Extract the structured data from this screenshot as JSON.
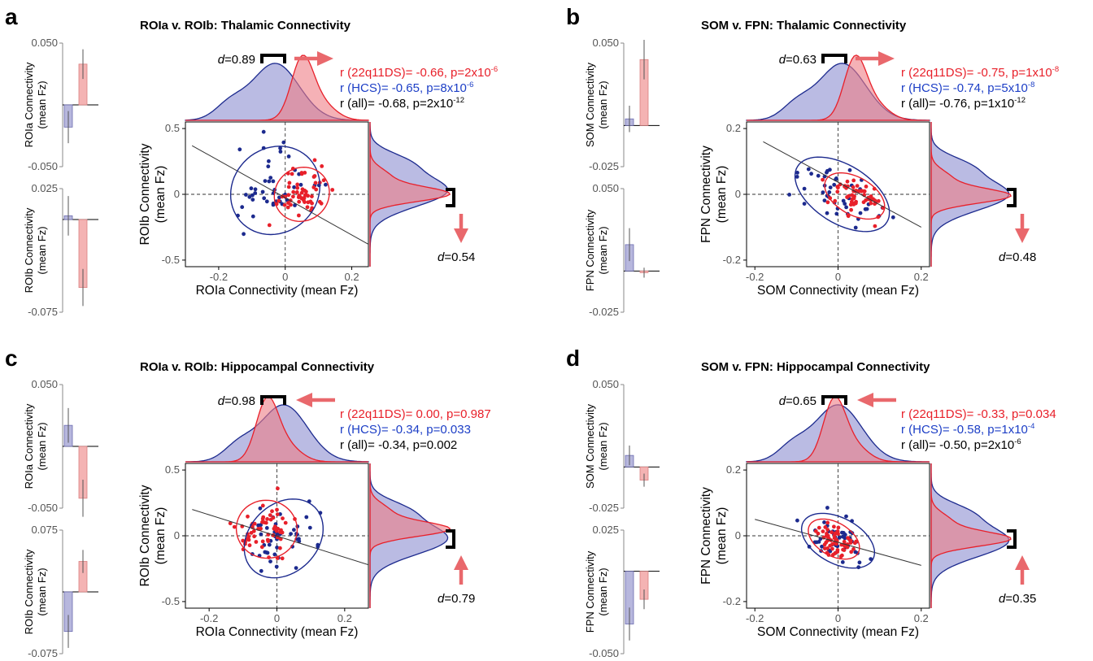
{
  "colors": {
    "patients_red": "#e8202a",
    "controls_blue": "#1c2a8e",
    "bar_red": "#f4b3b3",
    "bar_blue": "#b7b7dd",
    "density_red": "#ee7d86",
    "density_blue": "#8c8ed0",
    "arrow": "#e9686c",
    "stat_red": "#e8202a",
    "stat_blue": "#1c3ec6",
    "stat_black": "#000000"
  },
  "panels": [
    {
      "letter": "a",
      "title": "ROIa v. ROIb: Thalamic Connectivity",
      "scatter": {
        "xlabel": "ROIa Connectivity (mean Fz)",
        "ylabel_line1": "ROIb Connectivity",
        "ylabel_line2": "(mean Fz)",
        "xlim": [
          -0.3,
          0.25
        ],
        "ylim": [
          -0.55,
          0.55
        ],
        "xticks": [
          "-0.2",
          "0",
          "0.2"
        ],
        "yticks": [
          "0.5",
          "0",
          "-0.5"
        ],
        "regression": {
          "x0": -0.28,
          "y0": 0.37,
          "x1": 0.25,
          "y1": -0.38
        },
        "ellipse_22q": {
          "cx": 0.05,
          "cy": 0.0,
          "rx": 0.085,
          "ry": 0.2,
          "angle": -38
        },
        "ellipse_hcs": {
          "cx": -0.03,
          "cy": 0.03,
          "rx": 0.14,
          "ry": 0.32,
          "angle": -42
        }
      },
      "stats": {
        "r_22q": "r (22q11DS)= -0.66, p=2x10",
        "r_22q_exp": "-6",
        "r_hcs": "r (HCS)= -0.65, p=8x10",
        "r_hcs_exp": "-6",
        "r_all": "r (all)= -0.68, p=2x10",
        "r_all_exp": "-12"
      },
      "effect_x": {
        "d_label": "d",
        "d_value": "=0.89",
        "arrow": "right"
      },
      "effect_y": {
        "d_label": "d",
        "d_value": "=0.54",
        "arrow": "down"
      },
      "bars_top": {
        "ylabel_line1": "ROIa Connectivity",
        "ylabel_line2": "(mean Fz)",
        "tick_top": "0.050",
        "tick_bottom": "-0.050",
        "range": [
          -0.05,
          0.05
        ],
        "controls": -0.018,
        "controls_err": 0.013,
        "patients": 0.033,
        "patients_err": 0.012
      },
      "bars_bottom": {
        "ylabel_line1": "ROIb Connectivity",
        "ylabel_line2": "(mean Fz)",
        "tick_top": "0.025",
        "tick_bottom": "-0.075",
        "range": [
          -0.075,
          0.025
        ],
        "controls": 0.003,
        "controls_err": 0.016,
        "patients": -0.055,
        "patients_err": 0.015
      }
    },
    {
      "letter": "b",
      "title": "SOM v. FPN: Thalamic Connectivity",
      "scatter": {
        "xlabel": "SOM Connectivity (mean Fz)",
        "ylabel_line1": "FPN Connectivity",
        "ylabel_line2": "(mean Fz)",
        "xlim": [
          -0.22,
          0.22
        ],
        "ylim": [
          -0.22,
          0.22
        ],
        "xticks": [
          "-0.2",
          "0",
          "0.2"
        ],
        "yticks": [
          "0.2",
          "0",
          "-0.2"
        ],
        "regression": {
          "x0": -0.18,
          "y0": 0.16,
          "x1": 0.2,
          "y1": -0.1
        },
        "ellipse_22q": {
          "cx": 0.04,
          "cy": -0.005,
          "rx": 0.045,
          "ry": 0.1,
          "angle": -60
        },
        "ellipse_hcs": {
          "cx": 0.01,
          "cy": 0.0,
          "rx": 0.07,
          "ry": 0.16,
          "angle": -58
        }
      },
      "stats": {
        "r_22q": "r (22q11DS)= -0.75, p=1x10",
        "r_22q_exp": "-8",
        "r_hcs": "r (HCS)= -0.74, p=5x10",
        "r_hcs_exp": "-8",
        "r_all": "r (all)= -0.76, p=1x10",
        "r_all_exp": "-12"
      },
      "effect_x": {
        "d_label": "d",
        "d_value": "=0.63",
        "arrow": "right"
      },
      "effect_y": {
        "d_label": "d",
        "d_value": "=0.48",
        "arrow": "down"
      },
      "bars_top": {
        "ylabel_line1": "SOM Connectivity",
        "ylabel_line2": "(mean Fz)",
        "tick_top": "0.050",
        "tick_bottom": "-0.025",
        "range": [
          -0.025,
          0.05
        ],
        "controls": 0.004,
        "controls_err": 0.008,
        "patients": 0.04,
        "patients_err": 0.012
      },
      "bars_bottom": {
        "ylabel_line1": "FPN Connectivity",
        "ylabel_line2": "(mean Fz)",
        "tick_top": "0.050",
        "tick_bottom": "-0.025",
        "range": [
          -0.025,
          0.05
        ],
        "controls": 0.016,
        "controls_err": 0.01,
        "patients": -0.001,
        "patients_err": 0.003
      }
    },
    {
      "letter": "c",
      "title": "ROIa v. ROIb: Hippocampal Connectivity",
      "scatter": {
        "xlabel": "ROIa Connectivity (mean Fz)",
        "ylabel_line1": "ROIb Connectivity",
        "ylabel_line2": "(mean Fz)",
        "xlim": [
          -0.27,
          0.27
        ],
        "ylim": [
          -0.55,
          0.55
        ],
        "xticks": [
          "-0.2",
          "0",
          "0.2"
        ],
        "yticks": [
          "0.5",
          "0",
          "-0.5"
        ],
        "regression": {
          "x0": -0.25,
          "y0": 0.2,
          "x1": 0.27,
          "y1": -0.22
        },
        "ellipse_22q": {
          "cx": -0.03,
          "cy": 0.05,
          "rx": 0.09,
          "ry": 0.22,
          "angle": 10
        },
        "ellipse_hcs": {
          "cx": 0.02,
          "cy": -0.02,
          "rx": 0.13,
          "ry": 0.26,
          "angle": -45
        }
      },
      "stats": {
        "r_22q": "r (22q11DS)= 0.00, p=0.987",
        "r_22q_exp": "",
        "r_hcs": "r (HCS)= -0.34, p=0.033",
        "r_hcs_exp": "",
        "r_all": "r (all)= -0.34, p=0.002",
        "r_all_exp": ""
      },
      "effect_x": {
        "d_label": "d",
        "d_value": "=0.98",
        "arrow": "left"
      },
      "effect_y": {
        "d_label": "d",
        "d_value": "=0.79",
        "arrow": "up"
      },
      "bars_top": {
        "ylabel_line1": "ROIa Connectivity",
        "ylabel_line2": "(mean Fz)",
        "tick_top": "0.050",
        "tick_bottom": "-0.050",
        "range": [
          -0.05,
          0.05
        ],
        "controls": 0.017,
        "controls_err": 0.014,
        "patients": -0.042,
        "patients_err": 0.015
      },
      "bars_bottom": {
        "ylabel_line1": "ROIb Connectivity",
        "ylabel_line2": "(mean Fz)",
        "tick_top": "0.075",
        "tick_bottom": "-0.075",
        "range": [
          -0.075,
          0.075
        ],
        "controls": -0.048,
        "controls_err": 0.02,
        "patients": 0.037,
        "patients_err": 0.014
      }
    },
    {
      "letter": "d",
      "title": "SOM v. FPN: Hippocampal Connectivity",
      "scatter": {
        "xlabel": "SOM Connectivity (mean Fz)",
        "ylabel_line1": "FPN Connectivity",
        "ylabel_line2": "(mean Fz)",
        "xlim": [
          -0.22,
          0.22
        ],
        "ylim": [
          -0.22,
          0.22
        ],
        "xticks": [
          "-0.2",
          "0",
          "0.2"
        ],
        "yticks": [
          "0.2",
          "0",
          "-0.2"
        ],
        "regression": {
          "x0": -0.2,
          "y0": 0.05,
          "x1": 0.2,
          "y1": -0.09
        },
        "ellipse_22q": {
          "cx": -0.01,
          "cy": -0.01,
          "rx": 0.04,
          "ry": 0.085,
          "angle": -60
        },
        "ellipse_hcs": {
          "cx": 0.0,
          "cy": -0.015,
          "rx": 0.055,
          "ry": 0.12,
          "angle": -62
        }
      },
      "stats": {
        "r_22q": "r (22q11DS)= -0.33, p=0.034",
        "r_22q_exp": "",
        "r_hcs": "r (HCS)= -0.58, p=1x10",
        "r_hcs_exp": "-4",
        "r_all": "r (all)= -0.50, p=2x10",
        "r_all_exp": "-6"
      },
      "effect_x": {
        "d_label": "d",
        "d_value": "=0.65",
        "arrow": "left"
      },
      "effect_y": {
        "d_label": "d",
        "d_value": "=0.35",
        "arrow": "up"
      },
      "bars_top": {
        "ylabel_line1": "SOM Connectivity",
        "ylabel_line2": "(mean Fz)",
        "tick_top": "0.050",
        "tick_bottom": "-0.025",
        "range": [
          -0.025,
          0.05
        ],
        "controls": 0.007,
        "controls_err": 0.006,
        "patients": -0.008,
        "patients_err": 0.004
      },
      "bars_bottom": {
        "ylabel_line1": "FPN Connectivity",
        "ylabel_line2": "(mean Fz)",
        "tick_top": "0.025",
        "tick_bottom": "-0.050",
        "range": [
          -0.05,
          0.025
        ],
        "controls": -0.032,
        "controls_err": 0.01,
        "patients": -0.017,
        "patients_err": 0.006
      }
    }
  ],
  "chart_data": [
    {
      "type": "scatter",
      "title": "ROIa v. ROIb: Thalamic Connectivity",
      "xlabel": "ROIa Connectivity (mean Fz)",
      "ylabel": "ROIb Connectivity (mean Fz)",
      "xlim": [
        -0.3,
        0.25
      ],
      "ylim": [
        -0.55,
        0.55
      ],
      "series": [
        {
          "name": "22q11DS",
          "correlation_r": -0.66
        },
        {
          "name": "HCS",
          "correlation_r": -0.65
        }
      ]
    },
    {
      "type": "scatter",
      "title": "SOM v. FPN: Thalamic Connectivity",
      "xlabel": "SOM Connectivity (mean Fz)",
      "ylabel": "FPN Connectivity (mean Fz)",
      "xlim": [
        -0.22,
        0.22
      ],
      "ylim": [
        -0.22,
        0.22
      ],
      "series": [
        {
          "name": "22q11DS",
          "correlation_r": -0.75
        },
        {
          "name": "HCS",
          "correlation_r": -0.74
        }
      ]
    },
    {
      "type": "scatter",
      "title": "ROIa v. ROIb: Hippocampal Connectivity",
      "xlabel": "ROIa Connectivity (mean Fz)",
      "ylabel": "ROIb Connectivity (mean Fz)",
      "xlim": [
        -0.27,
        0.27
      ],
      "ylim": [
        -0.55,
        0.55
      ],
      "series": [
        {
          "name": "22q11DS",
          "correlation_r": 0.0
        },
        {
          "name": "HCS",
          "correlation_r": -0.34
        }
      ]
    },
    {
      "type": "scatter",
      "title": "SOM v. FPN: Hippocampal Connectivity",
      "xlabel": "SOM Connectivity (mean Fz)",
      "ylabel": "FPN Connectivity (mean Fz)",
      "xlim": [
        -0.22,
        0.22
      ],
      "ylim": [
        -0.22,
        0.22
      ],
      "series": [
        {
          "name": "22q11DS",
          "correlation_r": -0.33
        },
        {
          "name": "HCS",
          "correlation_r": -0.58
        }
      ]
    }
  ]
}
